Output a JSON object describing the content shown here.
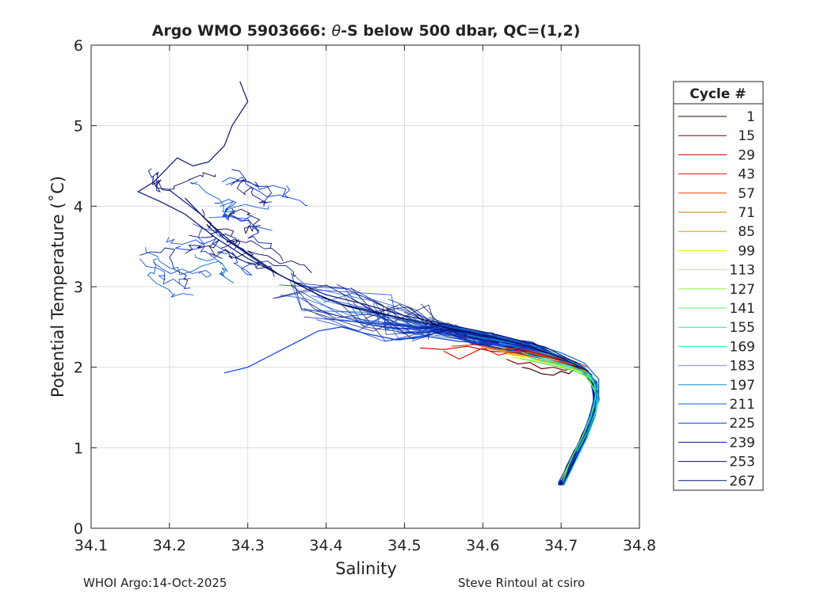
{
  "chart_data": {
    "type": "line",
    "title_prefix": "Argo WMO 5903666: ",
    "title_theta": "θ",
    "title_suffix": "-S below 500 dbar,  QC=(1,2)",
    "xlabel": "Salinity",
    "ylabel": "Potential Temperature (˚C)",
    "xlim": [
      34.1,
      34.8
    ],
    "ylim": [
      0,
      6
    ],
    "xticks": [
      34.1,
      34.2,
      34.3,
      34.4,
      34.5,
      34.6,
      34.7,
      34.8
    ],
    "xtick_labels": [
      "34.1",
      "34.2",
      "34.3",
      "34.4",
      "34.5",
      "34.6",
      "34.7",
      "34.8"
    ],
    "yticks": [
      0,
      1,
      2,
      3,
      4,
      5,
      6
    ],
    "ytick_labels": [
      "0",
      "1",
      "2",
      "3",
      "4",
      "5",
      "6"
    ],
    "grid": true,
    "legend": {
      "title": "Cycle #",
      "placement": "outside-right",
      "entries": [
        {
          "label": "1",
          "color": "#3a0000"
        },
        {
          "label": "15",
          "color": "#8c0000"
        },
        {
          "label": "29",
          "color": "#c80000"
        },
        {
          "label": "43",
          "color": "#e61010"
        },
        {
          "label": "57",
          "color": "#f03c00"
        },
        {
          "label": "71",
          "color": "#d27800"
        },
        {
          "label": "85",
          "color": "#d2a000"
        },
        {
          "label": "99",
          "color": "#e6e600"
        },
        {
          "label": "113",
          "color": "#c8f03c"
        },
        {
          "label": "127",
          "color": "#96f050"
        },
        {
          "label": "141",
          "color": "#50f064"
        },
        {
          "label": "155",
          "color": "#28e6a0"
        },
        {
          "label": "169",
          "color": "#1ee6c8"
        },
        {
          "label": "183",
          "color": "#14c8dc"
        },
        {
          "label": "197",
          "color": "#0a96c8"
        },
        {
          "label": "211",
          "color": "#0a64c8"
        },
        {
          "label": "225",
          "color": "#0a3ce6"
        },
        {
          "label": "239",
          "color": "#0a1e96"
        },
        {
          "label": "253",
          "color": "#0a0a5a"
        },
        {
          "label": "267",
          "color": "#0a146e"
        }
      ]
    },
    "envelope": {
      "description_points": "main deep branch theta-S envelope (salinity, theta)",
      "points": [
        [
          34.7,
          0.55
        ],
        [
          34.71,
          0.75
        ],
        [
          34.72,
          0.95
        ],
        [
          34.73,
          1.15
        ],
        [
          34.74,
          1.4
        ],
        [
          34.745,
          1.6
        ],
        [
          34.742,
          1.8
        ],
        [
          34.73,
          1.95
        ],
        [
          34.7,
          2.1
        ],
        [
          34.65,
          2.25
        ],
        [
          34.6,
          2.35
        ],
        [
          34.55,
          2.47
        ],
        [
          34.5,
          2.57
        ],
        [
          34.45,
          2.67
        ],
        [
          34.4,
          2.8
        ],
        [
          34.35,
          3.0
        ],
        [
          34.3,
          3.3
        ],
        [
          34.25,
          3.7
        ],
        [
          34.2,
          4.2
        ]
      ]
    },
    "series": [
      {
        "name": "1",
        "color": "#3a0000",
        "x": [
          34.65,
          34.66,
          34.675,
          34.69,
          34.7,
          34.71,
          34.72
        ],
        "y": [
          2.0,
          1.98,
          1.92,
          1.9,
          1.95,
          1.92,
          2.0
        ]
      },
      {
        "name": "15",
        "color": "#8c0000",
        "x": [
          34.63,
          34.645,
          34.66,
          34.675,
          34.69,
          34.705,
          34.72
        ],
        "y": [
          2.1,
          2.04,
          2.06,
          1.98,
          2.0,
          1.96,
          2.02
        ]
      },
      {
        "name": "29",
        "color": "#c80000",
        "x": [
          34.52,
          34.55,
          34.58,
          34.61,
          34.64,
          34.67,
          34.7,
          34.72
        ],
        "y": [
          2.24,
          2.22,
          2.26,
          2.2,
          2.18,
          2.12,
          2.06,
          2.02
        ]
      },
      {
        "name": "43",
        "color": "#e61010",
        "x": [
          34.55,
          34.57,
          34.6,
          34.62,
          34.65,
          34.68,
          34.71,
          34.73
        ],
        "y": [
          2.2,
          2.1,
          2.24,
          2.15,
          2.22,
          2.14,
          2.08,
          2.0
        ]
      },
      {
        "name": "57",
        "color": "#f03c00",
        "x": [
          34.56,
          34.59,
          34.62,
          34.65,
          34.68,
          34.71,
          34.735
        ],
        "y": [
          2.26,
          2.28,
          2.22,
          2.24,
          2.16,
          2.1,
          2.0
        ]
      },
      {
        "name": "71",
        "color": "#d27800",
        "x": [
          34.6,
          34.63,
          34.66,
          34.69,
          34.72,
          34.74
        ],
        "y": [
          2.24,
          2.2,
          2.18,
          2.1,
          2.02,
          1.9
        ]
      },
      {
        "name": "85",
        "color": "#d2a000",
        "x": [
          34.62,
          34.65,
          34.68,
          34.71,
          34.73,
          34.74
        ],
        "y": [
          2.2,
          2.14,
          2.08,
          2.02,
          1.95,
          1.85
        ]
      },
      {
        "name": "99",
        "color": "#e6e600",
        "x": [
          34.63,
          34.66,
          34.69,
          34.715,
          34.735,
          34.745
        ],
        "y": [
          2.16,
          2.12,
          2.04,
          1.98,
          1.9,
          1.75
        ]
      },
      {
        "name": "113",
        "color": "#c8f03c",
        "x": [
          34.64,
          34.67,
          34.7,
          34.72,
          34.74,
          34.745
        ],
        "y": [
          2.12,
          2.08,
          2.02,
          1.94,
          1.85,
          1.7
        ]
      },
      {
        "name": "127",
        "color": "#96f050",
        "x": [
          34.65,
          34.68,
          34.71,
          34.73,
          34.745,
          34.74,
          34.73,
          34.715,
          34.7
        ],
        "y": [
          2.1,
          2.04,
          1.98,
          1.9,
          1.7,
          1.45,
          1.2,
          0.9,
          0.6
        ]
      },
      {
        "name": "141",
        "color": "#50f064",
        "x": [
          34.66,
          34.69,
          34.715,
          34.735,
          34.745,
          34.738,
          34.728,
          34.712,
          34.702
        ],
        "y": [
          2.08,
          2.02,
          1.96,
          1.88,
          1.65,
          1.4,
          1.15,
          0.85,
          0.58
        ]
      },
      {
        "name": "155",
        "color": "#28e6a0",
        "x": [
          34.66,
          34.69,
          34.72,
          34.74,
          34.748,
          34.742,
          34.732,
          34.718,
          34.705
        ],
        "y": [
          2.12,
          2.05,
          1.98,
          1.86,
          1.6,
          1.35,
          1.1,
          0.82,
          0.56
        ]
      },
      {
        "name": "169",
        "color": "#1ee6c8",
        "x": [
          34.65,
          34.68,
          34.71,
          34.735,
          34.748,
          34.744,
          34.734,
          34.72
        ],
        "y": [
          2.18,
          2.1,
          2.02,
          1.92,
          1.7,
          1.45,
          1.2,
          0.95
        ]
      },
      {
        "name": "183",
        "color": "#14c8dc",
        "x": [
          34.62,
          34.66,
          34.7,
          34.73,
          34.745,
          34.742,
          34.735
        ],
        "y": [
          2.3,
          2.22,
          2.12,
          2.0,
          1.8,
          1.5,
          1.3
        ]
      },
      {
        "name": "197",
        "color": "#0a96c8",
        "x": [
          34.58,
          34.62,
          34.66,
          34.7,
          34.73,
          34.745,
          34.745
        ],
        "y": [
          2.4,
          2.33,
          2.26,
          2.14,
          2.0,
          1.8,
          1.55
        ]
      },
      {
        "name": "211",
        "color": "#0a64c8",
        "x": [
          34.5,
          34.54,
          34.58,
          34.62,
          34.66,
          34.7,
          34.73,
          34.748,
          34.748
        ],
        "y": [
          2.58,
          2.52,
          2.46,
          2.38,
          2.3,
          2.18,
          2.05,
          1.85,
          1.6
        ]
      },
      {
        "name": "225",
        "color": "#0a3ce6",
        "x": [
          34.27,
          34.3,
          34.33,
          34.36,
          34.39,
          34.42,
          34.45,
          34.49,
          34.53,
          34.57,
          34.61,
          34.65,
          34.69,
          34.72,
          34.74
        ],
        "y": [
          1.93,
          2.0,
          2.15,
          2.3,
          2.45,
          2.5,
          2.42,
          2.34,
          2.38,
          2.32,
          2.3,
          2.24,
          2.16,
          2.06,
          1.9
        ]
      },
      {
        "name": "239",
        "color": "#0a1e96",
        "x": [
          34.2,
          34.24,
          34.27,
          34.3,
          34.33,
          34.36,
          34.39,
          34.42,
          34.46,
          34.5,
          34.55,
          34.6,
          34.65,
          34.7,
          34.735
        ],
        "y": [
          4.2,
          3.9,
          3.6,
          3.4,
          3.2,
          3.05,
          2.9,
          2.78,
          2.7,
          2.6,
          2.5,
          2.4,
          2.28,
          2.12,
          1.95
        ]
      },
      {
        "name": "253",
        "color": "#0a0a5a",
        "x": [
          34.22,
          34.25,
          34.28,
          34.31,
          34.34,
          34.37,
          34.4,
          34.43,
          34.47,
          34.51,
          34.56,
          34.61,
          34.66,
          34.7,
          34.735
        ],
        "y": [
          4.1,
          3.8,
          3.55,
          3.35,
          3.15,
          3.0,
          2.85,
          2.75,
          2.66,
          2.58,
          2.48,
          2.38,
          2.26,
          2.12,
          1.95
        ]
      },
      {
        "name": "267",
        "color": "#0a146e",
        "x": [
          34.29,
          34.3,
          34.28,
          34.27,
          34.25,
          34.23,
          34.21,
          34.18,
          34.16,
          34.19,
          34.22,
          34.26,
          34.3,
          34.35,
          34.4,
          34.45,
          34.5,
          34.56,
          34.62,
          34.68,
          34.72
        ],
        "y": [
          5.55,
          5.3,
          5.0,
          4.75,
          4.55,
          4.5,
          4.6,
          4.3,
          4.18,
          4.05,
          3.9,
          3.6,
          3.35,
          3.1,
          2.9,
          2.78,
          2.64,
          2.52,
          2.4,
          2.25,
          2.05
        ]
      }
    ]
  },
  "footer": {
    "left": "WHOI Argo:14-Oct-2025",
    "right": "Steve Rintoul at csiro"
  }
}
